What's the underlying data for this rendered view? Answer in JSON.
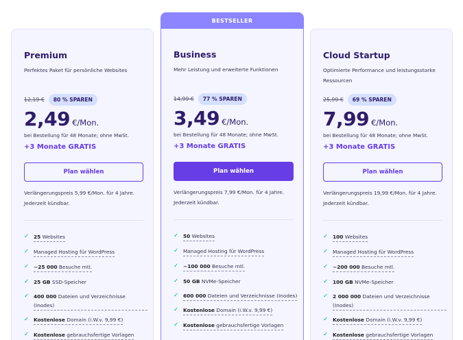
{
  "bestseller_label": "BESTSELLER",
  "plans": [
    {
      "name": "Premium",
      "description": "Perfektes Paket für persönliche Websites",
      "old_price": "12,19 €",
      "save": "80 % SPAREN",
      "price": "2,49",
      "price_unit": "€/Mon.",
      "price_note": "bei Bestellung für 48 Monate; ohne MwSt.",
      "bonus": "+3 Monate GRATIS",
      "button": "Plan wählen",
      "renewal": "Verlängerungspreis 5,99 €/Mon. für 4 Jahre. Jederzeit kündbar.",
      "features": [
        {
          "bold": "25",
          "text": " Websites"
        },
        {
          "bold": "",
          "text": "Managed Hosting für WordPress"
        },
        {
          "bold": "~25 000",
          "text": " Besuche mtl."
        },
        {
          "bold": "25 GB",
          "text": " SSD-Speicher"
        },
        {
          "bold": "400 000",
          "text": " Dateien und Verzeichnisse (Inodes)"
        },
        {
          "bold": "Kostenlose",
          "text": " Domain (i.W.v. 9,99 €)"
        },
        {
          "bold": "Kostenlose",
          "text": " gebrauchsfertige Vorlagen"
        }
      ]
    },
    {
      "name": "Business",
      "description": "Mehr Leistung und erweiterte Funktionen",
      "old_price": "14,99 €",
      "save": "77 % SPAREN",
      "price": "3,49",
      "price_unit": "€/Mon.",
      "price_note": "bei Bestellung für 48 Monate; ohne MwSt.",
      "bonus": "+3 Monate GRATIS",
      "button": "Plan wählen",
      "renewal": "Verlängerungspreis 7,99 €/Mon. für 4 Jahre. Jederzeit kündbar.",
      "features": [
        {
          "bold": "50",
          "text": " Websites"
        },
        {
          "bold": "",
          "text": "Managed Hosting für WordPress"
        },
        {
          "bold": "~100 000",
          "text": " Besuche mtl."
        },
        {
          "bold": "50 GB",
          "text": " NVMe-Speicher"
        },
        {
          "bold": "600 000",
          "text": " Dateien und Verzeichnisse (Inodes)"
        },
        {
          "bold": "Kostenlose",
          "text": " Domain (i.W.v. 9,99 €)"
        },
        {
          "bold": "Kostenlose",
          "text": " gebrauchsfertige Vorlagen"
        }
      ]
    },
    {
      "name": "Cloud Startup",
      "description": "Optimierte Performance und leistungsstarke Ressourcen",
      "old_price": "25,99 €",
      "save": "69 % SPAREN",
      "price": "7,99",
      "price_unit": "€/Mon.",
      "price_note": "bei Bestellung für 48 Monate; ohne MwSt.",
      "bonus": "+3 Monate GRATIS",
      "button": "Plan wählen",
      "renewal": "Verlängerungspreis 19,99 €/Mon. für 4 Jahre. Jederzeit kündbar.",
      "features": [
        {
          "bold": "100",
          "text": " Websites"
        },
        {
          "bold": "",
          "text": "Managed Hosting für WordPress"
        },
        {
          "bold": "~200 000",
          "text": " Besuche mtl."
        },
        {
          "bold": "100 GB",
          "text": " NVMe-Speicher"
        },
        {
          "bold": "2 000 000",
          "text": " Dateien und Verzeichnisse (Inodes)"
        },
        {
          "bold": "Kostenlose",
          "text": " Domain (i.W.v. 9,99 €)"
        },
        {
          "bold": "Kostenlose",
          "text": " gebrauchsfertige Vorlagen"
        }
      ]
    }
  ],
  "colors": {
    "accent": "#673de6",
    "bestseller_bg": "#8c85ff",
    "badge_bg": "#d5dfff",
    "card_bg": "#f4f5ff",
    "check": "#00b090",
    "heading": "#2f1c6a"
  },
  "icons": {
    "feature_check": "check-icon"
  }
}
